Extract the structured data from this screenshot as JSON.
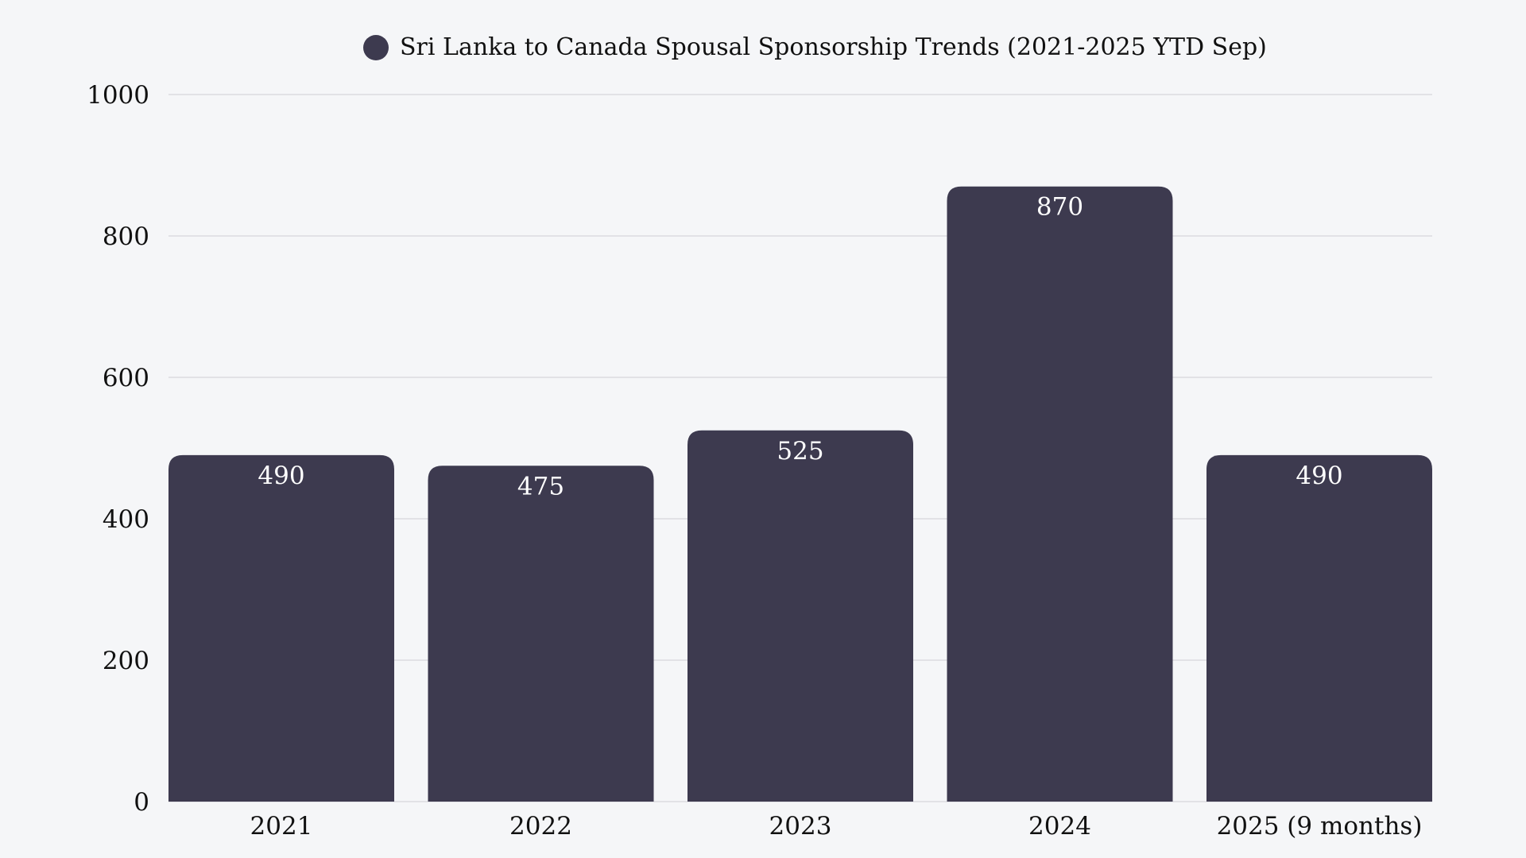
{
  "chart_data": {
    "type": "bar",
    "title": "",
    "legend": {
      "label": "Sri Lanka to Canada Spousal Sponsorship Trends (2021-2025 YTD Sep)",
      "placement": "top"
    },
    "categories": [
      "2021",
      "2022",
      "2023",
      "2024",
      "2025 (9 months)"
    ],
    "series": [
      {
        "name": "Sri Lanka to Canada Spousal Sponsorship Trends (2021-2025 YTD Sep)",
        "values": [
          490,
          475,
          525,
          870,
          490
        ]
      }
    ],
    "data_labels": [
      "490",
      "475",
      "525",
      "870",
      "490"
    ],
    "xlabel": "",
    "ylabel": "",
    "ylim": [
      0,
      1000
    ],
    "yticks": [
      "0",
      "200",
      "400",
      "600",
      "800",
      "1000"
    ],
    "grid": true,
    "colors": {
      "bar": "#3d3a4f",
      "background": "#f5f6f8",
      "grid": "#dcdcdf"
    }
  }
}
